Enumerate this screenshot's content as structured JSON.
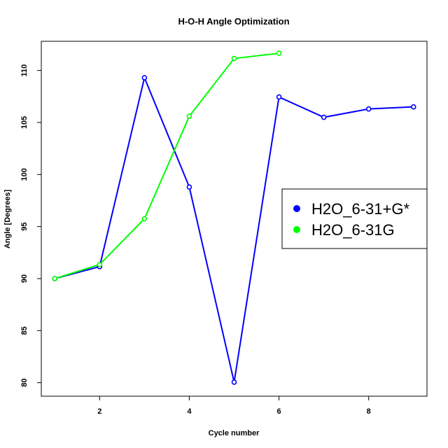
{
  "chart_data": {
    "type": "line",
    "title": "H-O-H Angle Optimization",
    "xlabel": "Cycle number",
    "ylabel": "Angle [Degrees]",
    "xlim": [
      0.7,
      9.3
    ],
    "ylim": [
      78.7,
      112.8
    ],
    "x_ticks": [
      2,
      4,
      6,
      8
    ],
    "y_ticks": [
      80,
      85,
      90,
      95,
      100,
      105,
      110
    ],
    "grid": false,
    "legend_position": "right",
    "series": [
      {
        "name": "H2O_6-31+G*",
        "color": "#0000ff",
        "x": [
          1,
          2,
          3,
          4,
          5,
          6,
          7,
          8,
          9
        ],
        "y": [
          90.0,
          91.15,
          109.3,
          98.8,
          80.05,
          107.45,
          105.5,
          106.3,
          106.5
        ]
      },
      {
        "name": "H2O_6-31G",
        "color": "#00ff00",
        "x": [
          1,
          2,
          3,
          4,
          5,
          6
        ],
        "y": [
          90.0,
          91.35,
          95.75,
          105.6,
          111.15,
          111.65
        ]
      }
    ]
  }
}
